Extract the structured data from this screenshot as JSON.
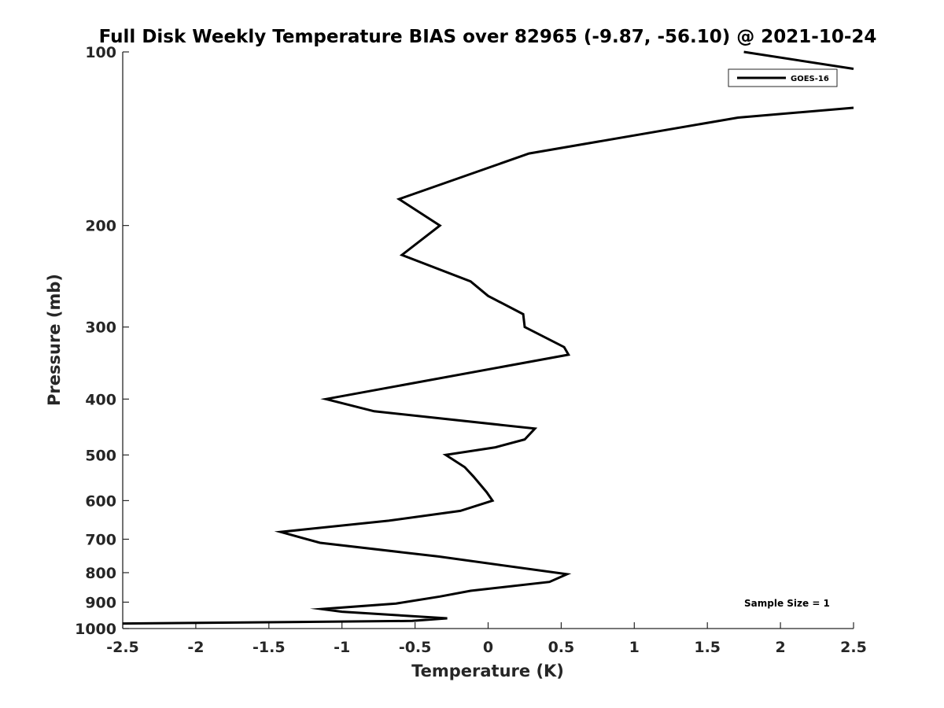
{
  "chart_data": {
    "type": "line",
    "title": "Full Disk Weekly Temperature BIAS over 82965 (-9.87, -56.10) @ 2021-10-24",
    "xlabel": "Temperature (K)",
    "ylabel": "Pressure (mb)",
    "xlim": [
      -2.5,
      2.5
    ],
    "ylim": [
      1000,
      100
    ],
    "y_scale": "log",
    "x_ticks": [
      -2.5,
      -2,
      -1.5,
      -1,
      -0.5,
      0,
      0.5,
      1,
      1.5,
      2,
      2.5
    ],
    "x_tick_labels": [
      "-2.5",
      "-2",
      "-1.5",
      "-1",
      "-0.5",
      "0",
      "0.5",
      "1",
      "1.5",
      "2",
      "2.5"
    ],
    "y_ticks": [
      100,
      200,
      300,
      400,
      500,
      600,
      700,
      800,
      900,
      1000
    ],
    "y_tick_labels": [
      "100",
      "200",
      "300",
      "400",
      "500",
      "600",
      "700",
      "800",
      "900",
      "1000"
    ],
    "grid": false,
    "legend_position": "top-right",
    "annotation": "Sample Size = 1",
    "line_color": "#000000",
    "series": [
      {
        "name": "GOES-16",
        "segments": [
          {
            "x": [
              1.75,
              2.5
            ],
            "y": [
              100,
              107
            ]
          },
          {
            "x": [
              2.5,
              1.71,
              0.28,
              -0.61,
              -0.33,
              -0.59,
              -0.12,
              0,
              0.24,
              0.25,
              0.52,
              0.55,
              -1.11,
              -0.78,
              0.32,
              0.25,
              0.05,
              -0.29,
              -0.16,
              -0.1,
              -0.01,
              0.03,
              -0.19,
              -0.68,
              -1.42,
              -1.15,
              -0.34,
              0.54,
              0.42,
              -0.12,
              -0.33,
              -0.63,
              -1.14,
              -1.0,
              -0.28,
              -0.52,
              -2.5
            ],
            "y": [
              125,
              130,
              150,
              180,
              200,
              225,
              250,
              265,
              285,
              300,
              325,
              335,
              400,
              420,
              450,
              470,
              485,
              500,
              525,
              545,
              580,
              600,
              625,
              650,
              680,
              710,
              750,
              805,
              830,
              860,
              880,
              905,
              925,
              935,
              960,
              970,
              980
            ]
          }
        ]
      }
    ]
  }
}
